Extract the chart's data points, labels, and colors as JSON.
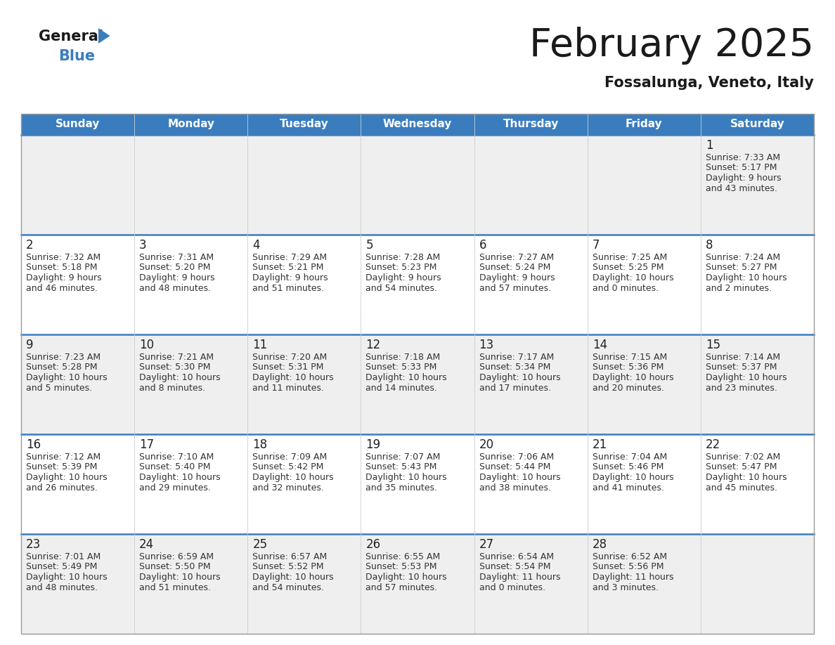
{
  "title": "February 2025",
  "subtitle": "Fossalunga, Veneto, Italy",
  "header_bg": "#3a7dbf",
  "header_text": "#ffffff",
  "cell_bg_even": "#efefef",
  "cell_bg_odd": "#ffffff",
  "border_top_color": "#3a7dbf",
  "text_color": "#333333",
  "day_num_color": "#222222",
  "day_names": [
    "Sunday",
    "Monday",
    "Tuesday",
    "Wednesday",
    "Thursday",
    "Friday",
    "Saturday"
  ],
  "days": [
    {
      "day": 1,
      "col": 6,
      "row": 0,
      "sunrise": "7:33 AM",
      "sunset": "5:17 PM",
      "daylight": "9 hours",
      "daylight2": "and 43 minutes."
    },
    {
      "day": 2,
      "col": 0,
      "row": 1,
      "sunrise": "7:32 AM",
      "sunset": "5:18 PM",
      "daylight": "9 hours",
      "daylight2": "and 46 minutes."
    },
    {
      "day": 3,
      "col": 1,
      "row": 1,
      "sunrise": "7:31 AM",
      "sunset": "5:20 PM",
      "daylight": "9 hours",
      "daylight2": "and 48 minutes."
    },
    {
      "day": 4,
      "col": 2,
      "row": 1,
      "sunrise": "7:29 AM",
      "sunset": "5:21 PM",
      "daylight": "9 hours",
      "daylight2": "and 51 minutes."
    },
    {
      "day": 5,
      "col": 3,
      "row": 1,
      "sunrise": "7:28 AM",
      "sunset": "5:23 PM",
      "daylight": "9 hours",
      "daylight2": "and 54 minutes."
    },
    {
      "day": 6,
      "col": 4,
      "row": 1,
      "sunrise": "7:27 AM",
      "sunset": "5:24 PM",
      "daylight": "9 hours",
      "daylight2": "and 57 minutes."
    },
    {
      "day": 7,
      "col": 5,
      "row": 1,
      "sunrise": "7:25 AM",
      "sunset": "5:25 PM",
      "daylight": "10 hours",
      "daylight2": "and 0 minutes."
    },
    {
      "day": 8,
      "col": 6,
      "row": 1,
      "sunrise": "7:24 AM",
      "sunset": "5:27 PM",
      "daylight": "10 hours",
      "daylight2": "and 2 minutes."
    },
    {
      "day": 9,
      "col": 0,
      "row": 2,
      "sunrise": "7:23 AM",
      "sunset": "5:28 PM",
      "daylight": "10 hours",
      "daylight2": "and 5 minutes."
    },
    {
      "day": 10,
      "col": 1,
      "row": 2,
      "sunrise": "7:21 AM",
      "sunset": "5:30 PM",
      "daylight": "10 hours",
      "daylight2": "and 8 minutes."
    },
    {
      "day": 11,
      "col": 2,
      "row": 2,
      "sunrise": "7:20 AM",
      "sunset": "5:31 PM",
      "daylight": "10 hours",
      "daylight2": "and 11 minutes."
    },
    {
      "day": 12,
      "col": 3,
      "row": 2,
      "sunrise": "7:18 AM",
      "sunset": "5:33 PM",
      "daylight": "10 hours",
      "daylight2": "and 14 minutes."
    },
    {
      "day": 13,
      "col": 4,
      "row": 2,
      "sunrise": "7:17 AM",
      "sunset": "5:34 PM",
      "daylight": "10 hours",
      "daylight2": "and 17 minutes."
    },
    {
      "day": 14,
      "col": 5,
      "row": 2,
      "sunrise": "7:15 AM",
      "sunset": "5:36 PM",
      "daylight": "10 hours",
      "daylight2": "and 20 minutes."
    },
    {
      "day": 15,
      "col": 6,
      "row": 2,
      "sunrise": "7:14 AM",
      "sunset": "5:37 PM",
      "daylight": "10 hours",
      "daylight2": "and 23 minutes."
    },
    {
      "day": 16,
      "col": 0,
      "row": 3,
      "sunrise": "7:12 AM",
      "sunset": "5:39 PM",
      "daylight": "10 hours",
      "daylight2": "and 26 minutes."
    },
    {
      "day": 17,
      "col": 1,
      "row": 3,
      "sunrise": "7:10 AM",
      "sunset": "5:40 PM",
      "daylight": "10 hours",
      "daylight2": "and 29 minutes."
    },
    {
      "day": 18,
      "col": 2,
      "row": 3,
      "sunrise": "7:09 AM",
      "sunset": "5:42 PM",
      "daylight": "10 hours",
      "daylight2": "and 32 minutes."
    },
    {
      "day": 19,
      "col": 3,
      "row": 3,
      "sunrise": "7:07 AM",
      "sunset": "5:43 PM",
      "daylight": "10 hours",
      "daylight2": "and 35 minutes."
    },
    {
      "day": 20,
      "col": 4,
      "row": 3,
      "sunrise": "7:06 AM",
      "sunset": "5:44 PM",
      "daylight": "10 hours",
      "daylight2": "and 38 minutes."
    },
    {
      "day": 21,
      "col": 5,
      "row": 3,
      "sunrise": "7:04 AM",
      "sunset": "5:46 PM",
      "daylight": "10 hours",
      "daylight2": "and 41 minutes."
    },
    {
      "day": 22,
      "col": 6,
      "row": 3,
      "sunrise": "7:02 AM",
      "sunset": "5:47 PM",
      "daylight": "10 hours",
      "daylight2": "and 45 minutes."
    },
    {
      "day": 23,
      "col": 0,
      "row": 4,
      "sunrise": "7:01 AM",
      "sunset": "5:49 PM",
      "daylight": "10 hours",
      "daylight2": "and 48 minutes."
    },
    {
      "day": 24,
      "col": 1,
      "row": 4,
      "sunrise": "6:59 AM",
      "sunset": "5:50 PM",
      "daylight": "10 hours",
      "daylight2": "and 51 minutes."
    },
    {
      "day": 25,
      "col": 2,
      "row": 4,
      "sunrise": "6:57 AM",
      "sunset": "5:52 PM",
      "daylight": "10 hours",
      "daylight2": "and 54 minutes."
    },
    {
      "day": 26,
      "col": 3,
      "row": 4,
      "sunrise": "6:55 AM",
      "sunset": "5:53 PM",
      "daylight": "10 hours",
      "daylight2": "and 57 minutes."
    },
    {
      "day": 27,
      "col": 4,
      "row": 4,
      "sunrise": "6:54 AM",
      "sunset": "5:54 PM",
      "daylight": "11 hours",
      "daylight2": "and 0 minutes."
    },
    {
      "day": 28,
      "col": 5,
      "row": 4,
      "sunrise": "6:52 AM",
      "sunset": "5:56 PM",
      "daylight": "11 hours",
      "daylight2": "and 3 minutes."
    }
  ],
  "num_rows": 5,
  "title_fontsize": 40,
  "subtitle_fontsize": 15,
  "header_fontsize": 11,
  "day_num_fontsize": 12,
  "cell_text_fontsize": 9
}
